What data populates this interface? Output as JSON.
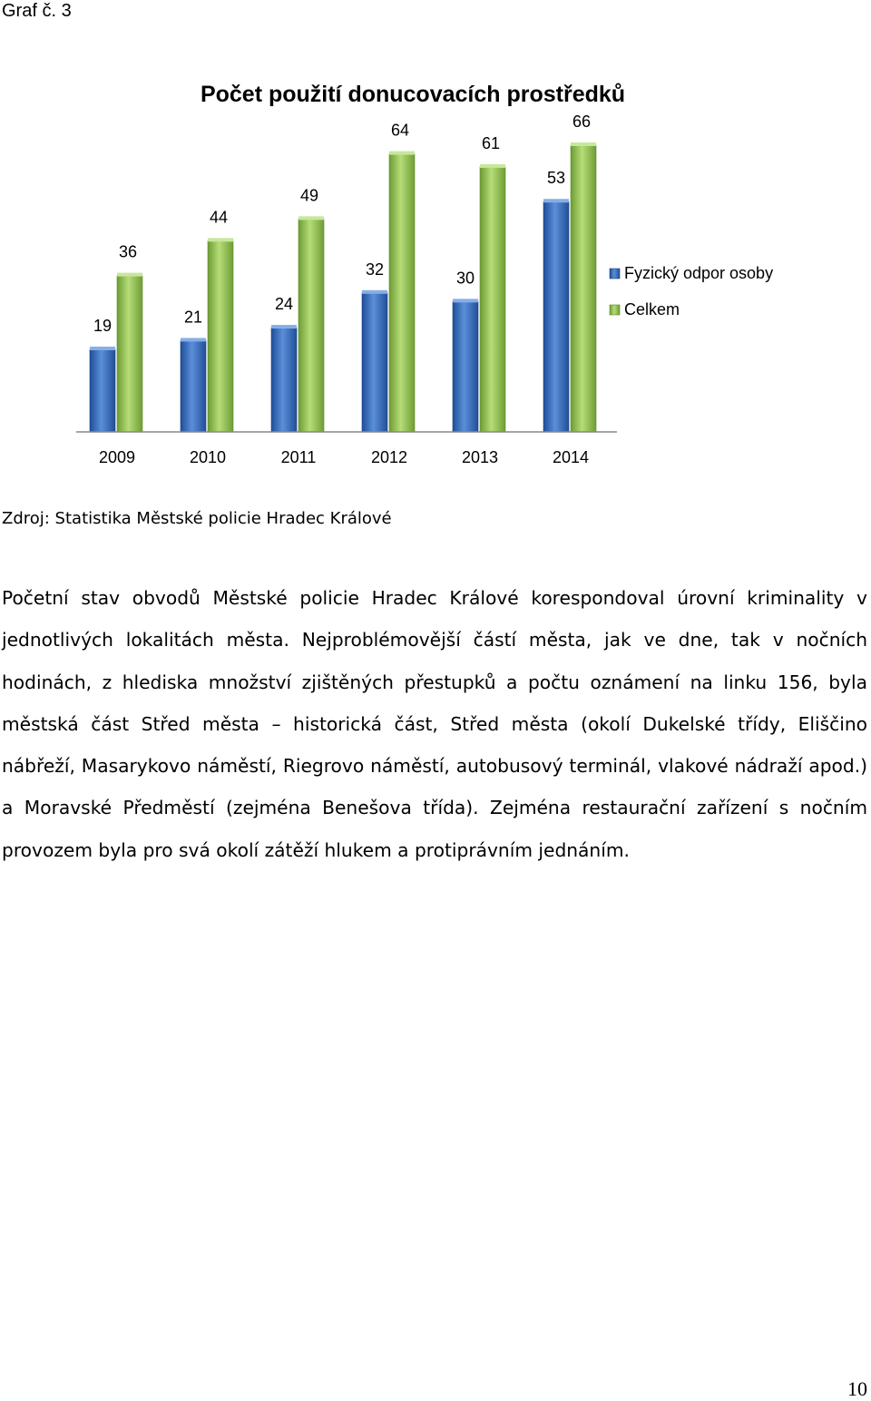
{
  "caption": "Graf č. 3",
  "chart_data": {
    "type": "bar",
    "title": "Počet použití donucovacích prostředků",
    "categories": [
      "2009",
      "2010",
      "2011",
      "2012",
      "2013",
      "2014"
    ],
    "series": [
      {
        "name": "Fyzický odpor osoby",
        "values": [
          19,
          21,
          24,
          32,
          30,
          53
        ],
        "color": "#3a6fc0"
      },
      {
        "name": "Celkem",
        "values": [
          36,
          44,
          49,
          64,
          61,
          66
        ],
        "color": "#8fc24a"
      }
    ],
    "ylim": [
      0,
      66
    ],
    "grid": false,
    "legend": "right",
    "data_labels": true
  },
  "source": "Zdroj: Statistika Městské policie Hradec Králové",
  "paragraph": "Početní stav obvodů Městské policie Hradec Králové korespondoval úrovní kriminality v jednotlivých lokalitách města. Nejproblémovější částí města, jak ve dne, tak v nočních hodinách, z hlediska množství zjištěných přestupků a počtu oznámení na linku 156, byla městská část Střed města – historická část, Střed města (okolí Dukelské třídy, Eliščino nábřeží, Masarykovo náměstí, Riegrovo náměstí, autobusový terminál, vlakové nádraží apod.) a Moravské Předměstí (zejména Benešova třída). Zejména restaurační zařízení s nočním provozem byla pro svá okolí zátěží hlukem a protiprávním jednáním.",
  "page_number": "10"
}
